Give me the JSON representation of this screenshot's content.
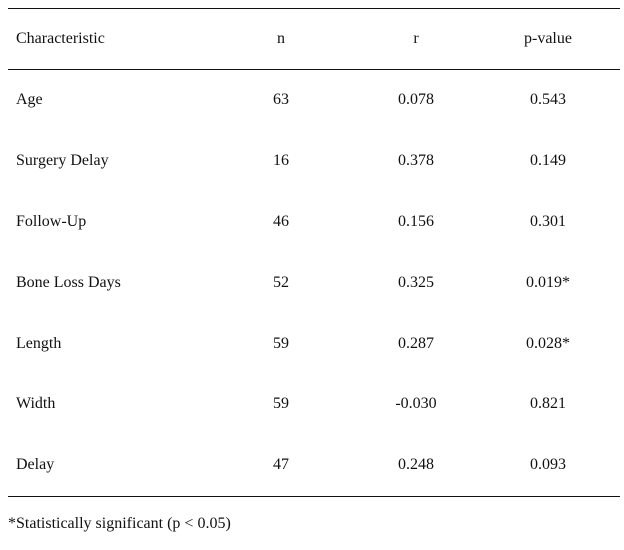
{
  "table": {
    "headers": {
      "characteristic": "Characteristic",
      "n": "n",
      "r": "r",
      "p_value": "p-value"
    },
    "rows": [
      {
        "characteristic": "Age",
        "n": "63",
        "r": "0.078",
        "p_value": "0.543"
      },
      {
        "characteristic": "Surgery Delay",
        "n": "16",
        "r": "0.378",
        "p_value": "0.149"
      },
      {
        "characteristic": "Follow-Up",
        "n": "46",
        "r": "0.156",
        "p_value": "0.301"
      },
      {
        "characteristic": "Bone Loss Days",
        "n": "52",
        "r": "0.325",
        "p_value": "0.019*"
      },
      {
        "characteristic": "Length",
        "n": "59",
        "r": "0.287",
        "p_value": "0.028*"
      },
      {
        "characteristic": "Width",
        "n": "59",
        "r": "-0.030",
        "p_value": "0.821"
      },
      {
        "characteristic": "Delay",
        "n": "47",
        "r": "0.248",
        "p_value": "0.093"
      }
    ]
  },
  "footnote": "*Statistically significant (p < 0.05)"
}
